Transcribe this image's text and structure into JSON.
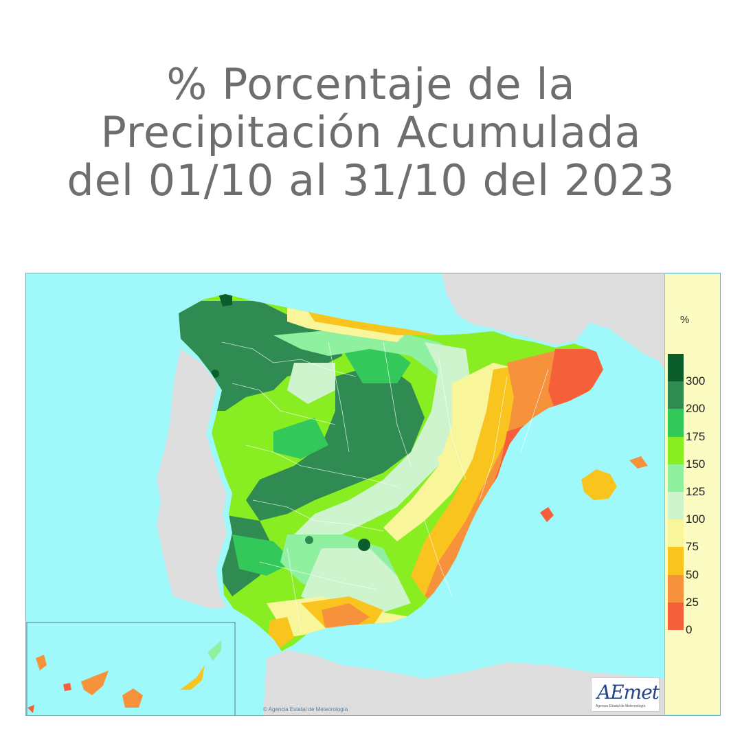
{
  "title": {
    "line1": "% Porcentaje de la",
    "line2": "Precipitación Acumulada",
    "line3": "del 01/10 al 31/10 del 2023"
  },
  "map": {
    "legend_unit": "%",
    "legend": [
      {
        "label": "300",
        "color": "#0b5e2c"
      },
      {
        "label": "200",
        "color": "#2f8b52"
      },
      {
        "label": "175",
        "color": "#33c95a"
      },
      {
        "label": "150",
        "color": "#88ee22"
      },
      {
        "label": "125",
        "color": "#8ff0a0"
      },
      {
        "label": "100",
        "color": "#cdf4cd"
      },
      {
        "label": "75",
        "color": "#f8f59a"
      },
      {
        "label": "50",
        "color": "#f9c41e"
      },
      {
        "label": "25",
        "color": "#f7923c"
      },
      {
        "label": "0",
        "color": "#f5603a"
      }
    ],
    "colors": {
      "sea": "#9ff9fb",
      "land_outside": "#dddddd",
      "legend_bg": "#fbfbc2"
    },
    "logo_text": "AEmet",
    "logo_subtext": "Agencia Estatal de Meteorología",
    "copyright": "© Agencia Estatal de Meteorología"
  }
}
